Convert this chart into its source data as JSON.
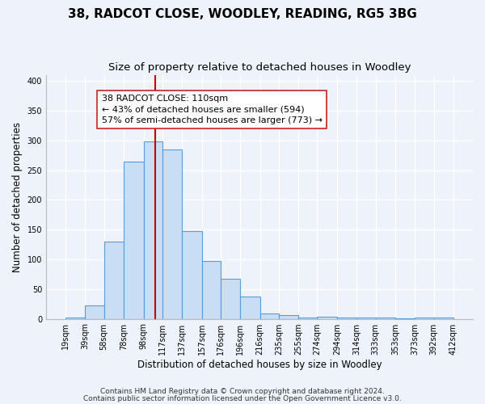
{
  "title": "38, RADCOT CLOSE, WOODLEY, READING, RG5 3BG",
  "subtitle": "Size of property relative to detached houses in Woodley",
  "xlabel": "Distribution of detached houses by size in Woodley",
  "ylabel": "Number of detached properties",
  "bar_left_edges": [
    19,
    39,
    58,
    78,
    98,
    117,
    137,
    157,
    176,
    196,
    216,
    235,
    255,
    274,
    294,
    314,
    333,
    353,
    373,
    392
  ],
  "bar_heights": [
    2,
    22,
    130,
    265,
    298,
    285,
    147,
    98,
    68,
    38,
    9,
    6,
    2,
    4,
    2,
    2,
    2,
    1,
    2,
    2
  ],
  "bar_widths": [
    20,
    19,
    20,
    20,
    19,
    20,
    20,
    19,
    20,
    20,
    19,
    20,
    19,
    20,
    20,
    19,
    20,
    20,
    19,
    20
  ],
  "tick_labels": [
    "19sqm",
    "39sqm",
    "58sqm",
    "78sqm",
    "98sqm",
    "117sqm",
    "137sqm",
    "157sqm",
    "176sqm",
    "196sqm",
    "216sqm",
    "235sqm",
    "255sqm",
    "274sqm",
    "294sqm",
    "314sqm",
    "333sqm",
    "353sqm",
    "373sqm",
    "392sqm",
    "412sqm"
  ],
  "tick_positions": [
    19,
    39,
    58,
    78,
    98,
    117,
    137,
    157,
    176,
    196,
    216,
    235,
    255,
    274,
    294,
    314,
    333,
    353,
    373,
    392,
    412
  ],
  "bar_color": "#c9ddf5",
  "bar_edge_color": "#5b9bd5",
  "vline_x": 110,
  "vline_color": "#cc0000",
  "ylim": [
    0,
    410
  ],
  "yticks": [
    0,
    50,
    100,
    150,
    200,
    250,
    300,
    350,
    400
  ],
  "annotation_box_text": "38 RADCOT CLOSE: 110sqm\n← 43% of detached houses are smaller (594)\n57% of semi-detached houses are larger (773) →",
  "footnote1": "Contains HM Land Registry data © Crown copyright and database right 2024.",
  "footnote2": "Contains public sector information licensed under the Open Government Licence v3.0.",
  "background_color": "#eef2fa",
  "grid_color": "#ffffff",
  "title_fontsize": 11,
  "subtitle_fontsize": 9.5,
  "xlabel_fontsize": 8.5,
  "ylabel_fontsize": 8.5,
  "tick_fontsize": 7,
  "annotation_fontsize": 8,
  "footnote_fontsize": 6.5
}
